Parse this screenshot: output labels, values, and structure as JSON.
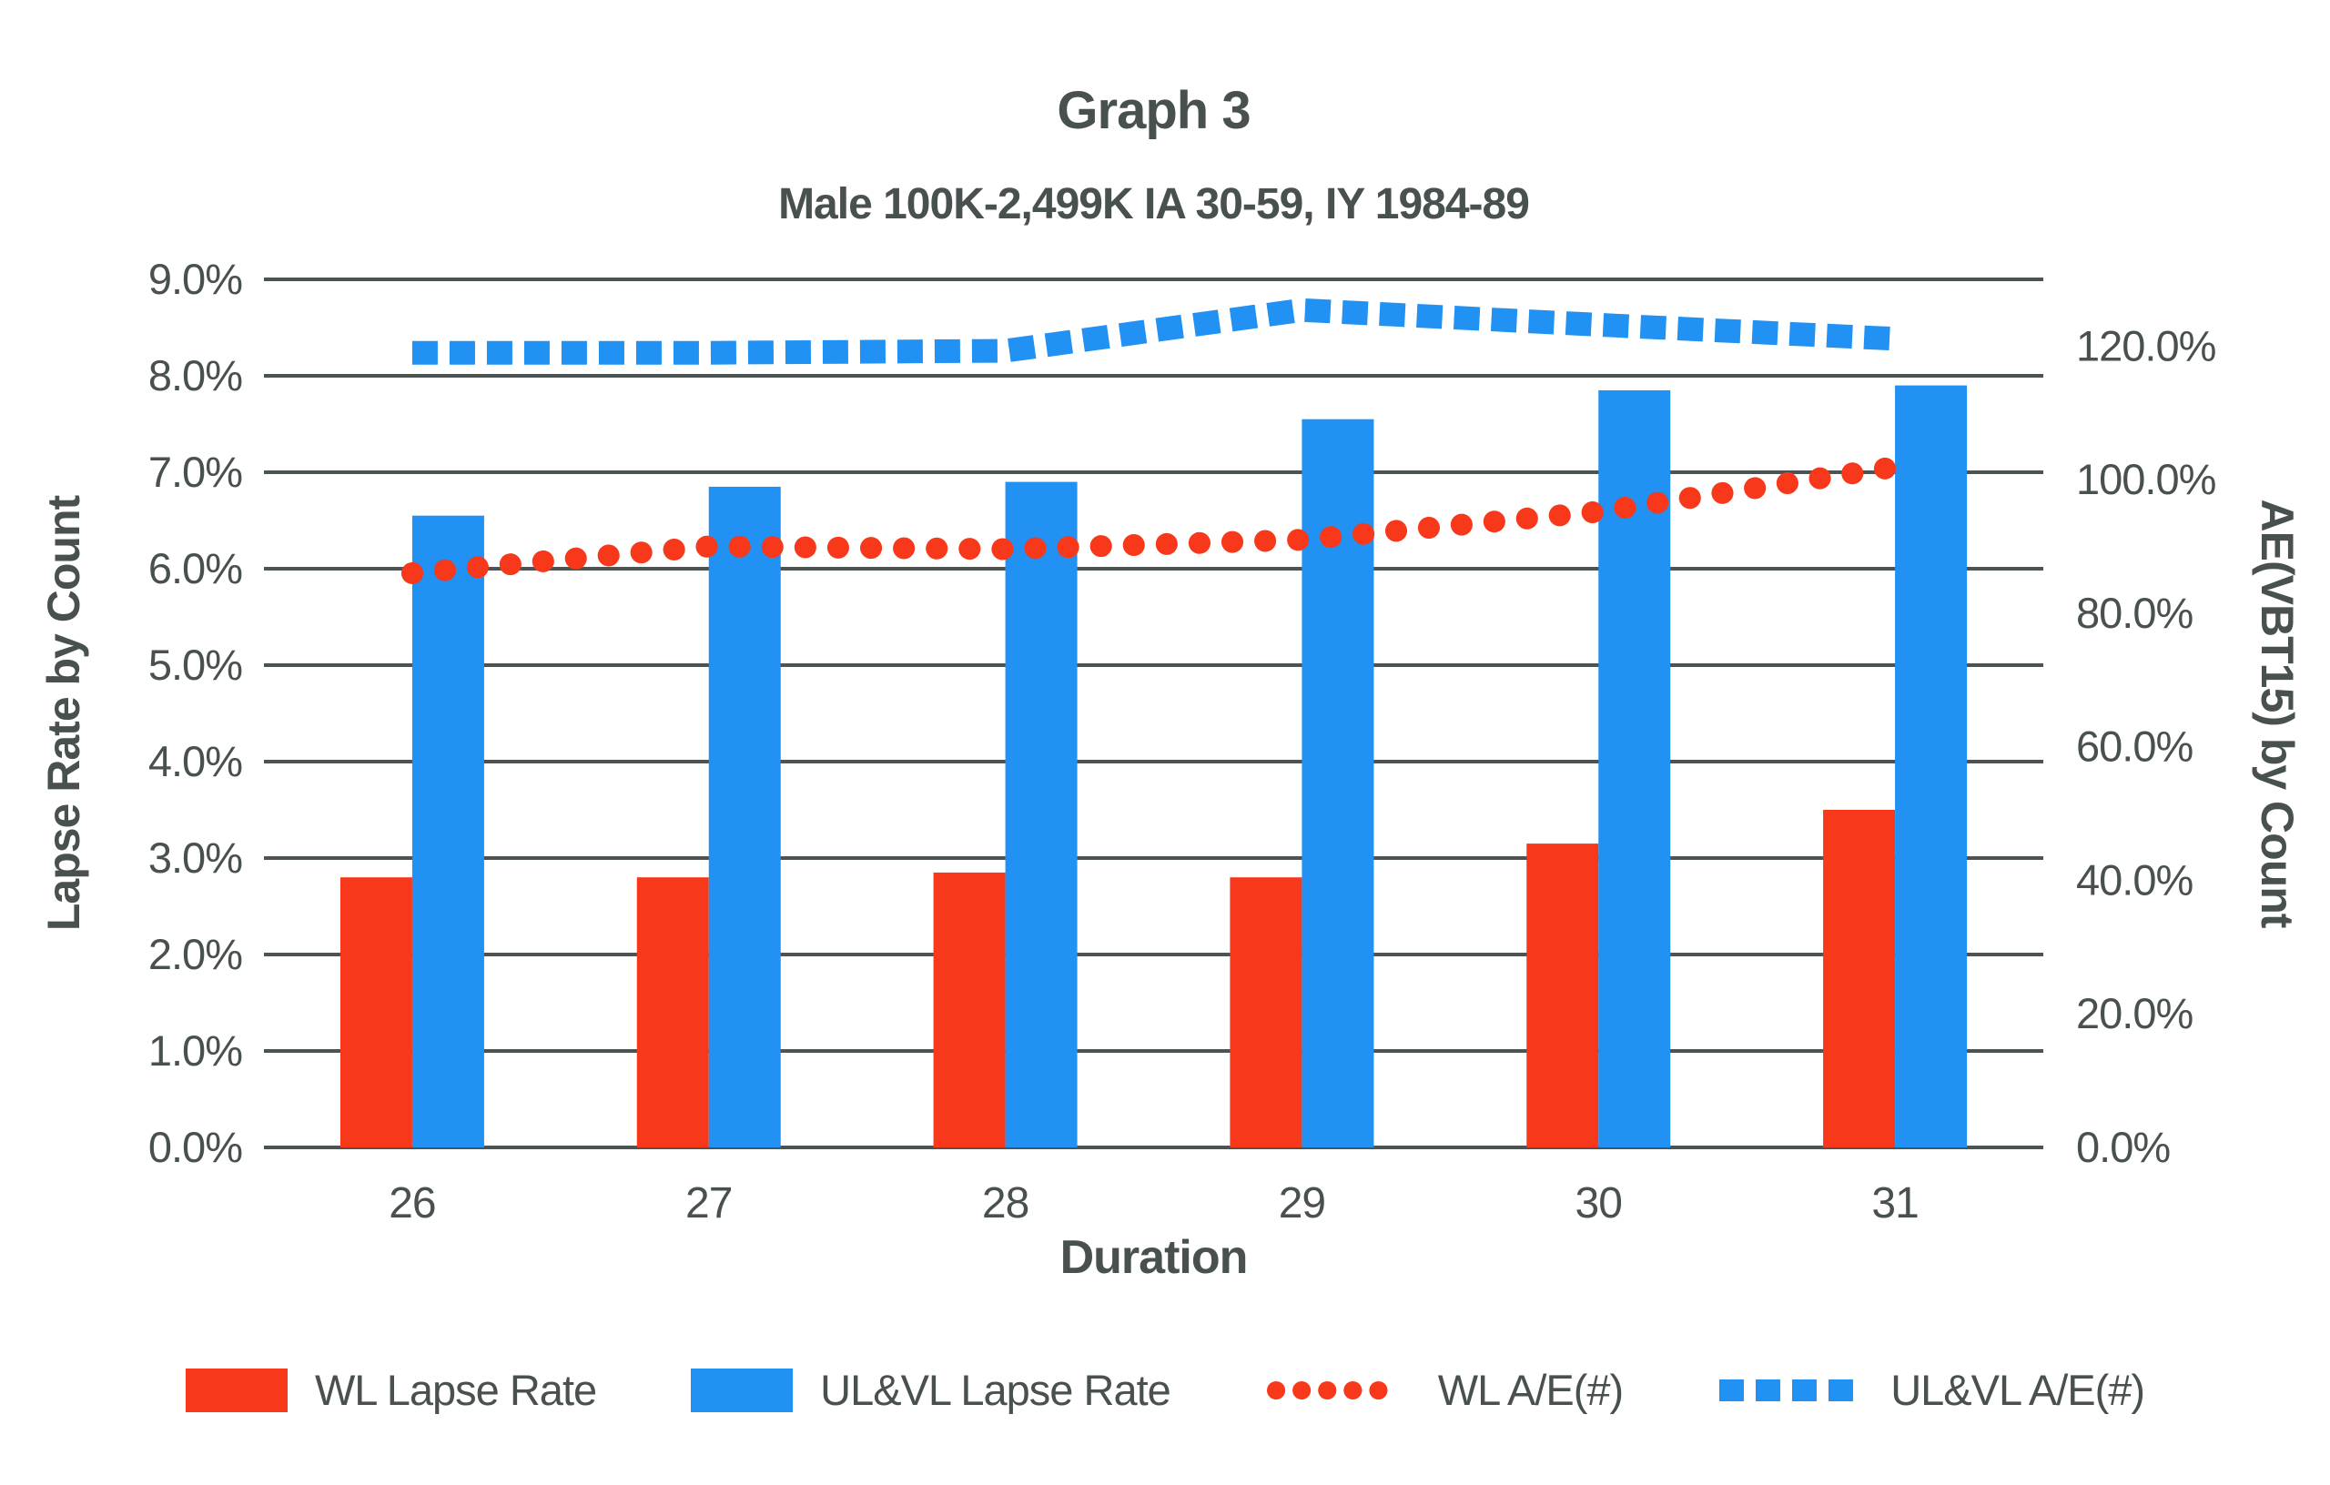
{
  "title": "Graph 3",
  "subtitle": "Male 100K-2,499K IA 30-59, IY 1984-89",
  "colors": {
    "red": "#F7381A",
    "blue": "#2191F3",
    "text": "#48514F",
    "grid": "#4B5452"
  },
  "chart_data": {
    "type": "bar",
    "subtype": "combo bar+line, dual axis",
    "categories": [
      "26",
      "27",
      "28",
      "29",
      "30",
      "31"
    ],
    "xlabel": "Duration",
    "grid": "horizontal gridlines on",
    "legend_position": "bottom",
    "left_axis": {
      "title": "Lapse Rate by Count",
      "min": 0,
      "max": 9,
      "tick_step": 1,
      "tick_labels": [
        "0.0%",
        "1.0%",
        "2.0%",
        "3.0%",
        "4.0%",
        "5.0%",
        "6.0%",
        "7.0%",
        "8.0%",
        "9.0%"
      ]
    },
    "right_axis": {
      "title": "AE(VBT15) by Count",
      "min": 0,
      "max": 130,
      "tick_step": 20,
      "tick_labels": [
        "0.0%",
        "20.0%",
        "40.0%",
        "60.0%",
        "80.0%",
        "100.0%",
        "120.0%"
      ]
    },
    "series": [
      {
        "name": "WL Lapse Rate",
        "type": "bar",
        "axis": "left",
        "color_key": "red",
        "values": [
          2.8,
          2.8,
          2.85,
          2.8,
          3.15,
          3.5
        ]
      },
      {
        "name": "UL&VL Lapse Rate",
        "type": "bar",
        "axis": "left",
        "color_key": "blue",
        "values": [
          6.55,
          6.85,
          6.9,
          7.55,
          7.85,
          7.9
        ]
      },
      {
        "name": "WL A/E(#)",
        "type": "line",
        "style": "dotted",
        "axis": "right",
        "color_key": "red",
        "values": [
          86.0,
          90.0,
          89.6,
          91.0,
          95.2,
          101.9
        ]
      },
      {
        "name": "UL&VL A/E(#)",
        "type": "line",
        "style": "dashed",
        "axis": "right",
        "color_key": "blue",
        "values": [
          119.0,
          119.0,
          119.3,
          125.4,
          123.2,
          121.1
        ]
      }
    ]
  },
  "legend": {
    "items": [
      {
        "label": "WL Lapse Rate"
      },
      {
        "label": "UL&VL Lapse Rate"
      },
      {
        "label": "WL A/E(#)"
      },
      {
        "label": "UL&VL A/E(#)"
      }
    ]
  }
}
